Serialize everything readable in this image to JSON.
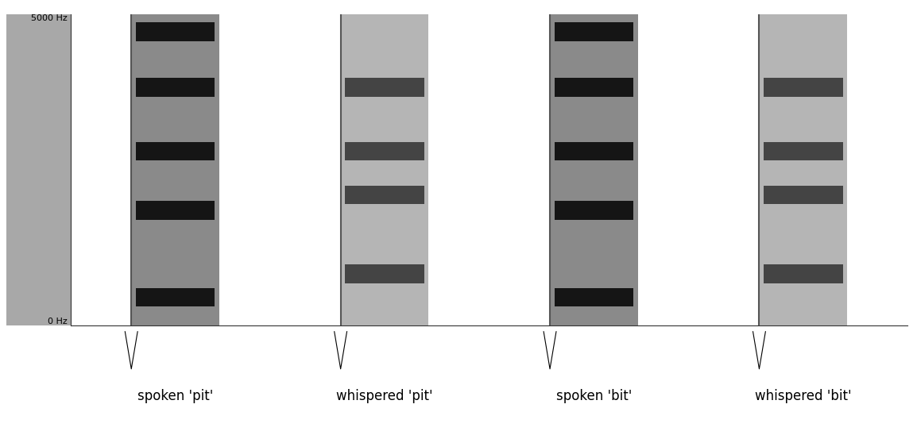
{
  "chart_data": {
    "type": "spectrogram",
    "categories": [
      "spoken 'pit'",
      "whispered 'pit'",
      "spoken 'bit'",
      "whispered 'bit'"
    ],
    "formants": [
      [
        450,
        1850,
        2800,
        3830,
        4720
      ],
      [
        830,
        2100,
        2800,
        3830
      ],
      [
        450,
        1850,
        2800,
        3830,
        4720
      ],
      [
        830,
        2100,
        2800,
        3830
      ]
    ],
    "ylim": [
      0,
      5000
    ],
    "yticks": [
      {
        "value": 0,
        "label": "0 Hz"
      },
      {
        "value": 5000,
        "label": "5000 Hz"
      }
    ],
    "tick_labels": "y"
  }
}
